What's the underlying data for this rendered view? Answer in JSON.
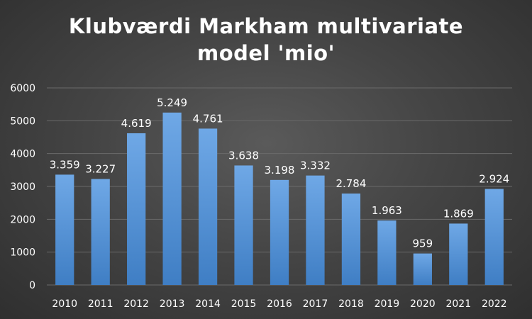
{
  "chart_data": {
    "type": "bar",
    "title_lines": [
      "Klubværdi Markham multivariate",
      "model 'mio'"
    ],
    "categories": [
      "2010",
      "2011",
      "2012",
      "2013",
      "2014",
      "2015",
      "2016",
      "2017",
      "2018",
      "2019",
      "2020",
      "2021",
      "2022"
    ],
    "values": [
      3359,
      3227,
      4619,
      5249,
      4761,
      3638,
      3198,
      3332,
      2784,
      1963,
      959,
      1869,
      2924
    ],
    "data_labels": [
      "3.359",
      "3.227",
      "4.619",
      "5.249",
      "4.761",
      "3.638",
      "3.198",
      "3.332",
      "2.784",
      "1.963",
      "959",
      "1.869",
      "2.924"
    ],
    "xlabel": "",
    "ylabel": "",
    "ylim": [
      0,
      6000
    ],
    "yticks": [
      0,
      1000,
      2000,
      3000,
      4000,
      5000,
      6000
    ],
    "ytick_labels": [
      "0",
      "1000",
      "2000",
      "3000",
      "4000",
      "5000",
      "6000"
    ],
    "grid": true,
    "legend": "none",
    "colors": {
      "bar_top": "#6fa8e6",
      "bar_bottom": "#3f7ec4",
      "grid": "#6a6a6a",
      "text": "#ffffff"
    }
  }
}
